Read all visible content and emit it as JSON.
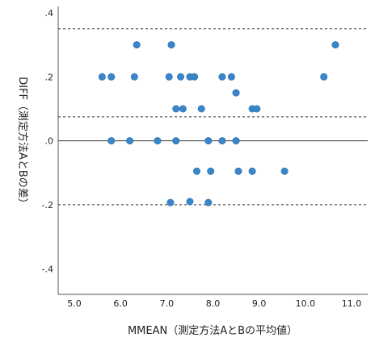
{
  "chart_data": {
    "type": "scatter",
    "xlabel": "MMEAN（測定方法AとBの平均値）",
    "ylabel": "DIFF（測定方法AとBの差）",
    "xlim": [
      4.65,
      11.35
    ],
    "ylim": [
      -0.48,
      0.42
    ],
    "x_ticks": [
      5.0,
      6.0,
      7.0,
      8.0,
      9.0,
      10.0,
      11.0
    ],
    "x_tick_labels": [
      "5.0",
      "6.0",
      "7.0",
      "8.0",
      "9.0",
      "10.0",
      "11.0"
    ],
    "y_ticks": [
      0.4,
      0.2,
      0.0,
      -0.2,
      -0.4
    ],
    "y_tick_labels": [
      ".4",
      ".2",
      ".0",
      "-.2",
      "-.4"
    ],
    "grid": false,
    "reference_lines": [
      {
        "y": 0.35,
        "style": "dashed"
      },
      {
        "y": 0.075,
        "style": "dashed"
      },
      {
        "y": 0.0,
        "style": "solid"
      },
      {
        "y": -0.2,
        "style": "dashed"
      }
    ],
    "marker_color": "#3a86c8",
    "points": [
      {
        "x": 5.6,
        "y": 0.2
      },
      {
        "x": 5.8,
        "y": 0.2
      },
      {
        "x": 6.3,
        "y": 0.2
      },
      {
        "x": 6.35,
        "y": 0.3
      },
      {
        "x": 7.1,
        "y": 0.3
      },
      {
        "x": 7.05,
        "y": 0.2
      },
      {
        "x": 7.3,
        "y": 0.2
      },
      {
        "x": 7.5,
        "y": 0.2
      },
      {
        "x": 7.6,
        "y": 0.2
      },
      {
        "x": 8.2,
        "y": 0.2
      },
      {
        "x": 8.4,
        "y": 0.2
      },
      {
        "x": 10.4,
        "y": 0.2
      },
      {
        "x": 10.65,
        "y": 0.3
      },
      {
        "x": 8.5,
        "y": 0.15
      },
      {
        "x": 7.2,
        "y": 0.1
      },
      {
        "x": 7.35,
        "y": 0.1
      },
      {
        "x": 7.75,
        "y": 0.1
      },
      {
        "x": 8.85,
        "y": 0.1
      },
      {
        "x": 8.95,
        "y": 0.1
      },
      {
        "x": 5.8,
        "y": 0.0
      },
      {
        "x": 6.2,
        "y": 0.0
      },
      {
        "x": 6.8,
        "y": 0.0
      },
      {
        "x": 7.2,
        "y": 0.0
      },
      {
        "x": 7.9,
        "y": 0.0
      },
      {
        "x": 8.2,
        "y": 0.0
      },
      {
        "x": 8.5,
        "y": 0.0
      },
      {
        "x": 7.65,
        "y": -0.095
      },
      {
        "x": 7.95,
        "y": -0.095
      },
      {
        "x": 8.55,
        "y": -0.095
      },
      {
        "x": 8.85,
        "y": -0.095
      },
      {
        "x": 9.55,
        "y": -0.095
      },
      {
        "x": 7.08,
        "y": -0.193
      },
      {
        "x": 7.5,
        "y": -0.19
      },
      {
        "x": 7.9,
        "y": -0.193
      }
    ]
  }
}
